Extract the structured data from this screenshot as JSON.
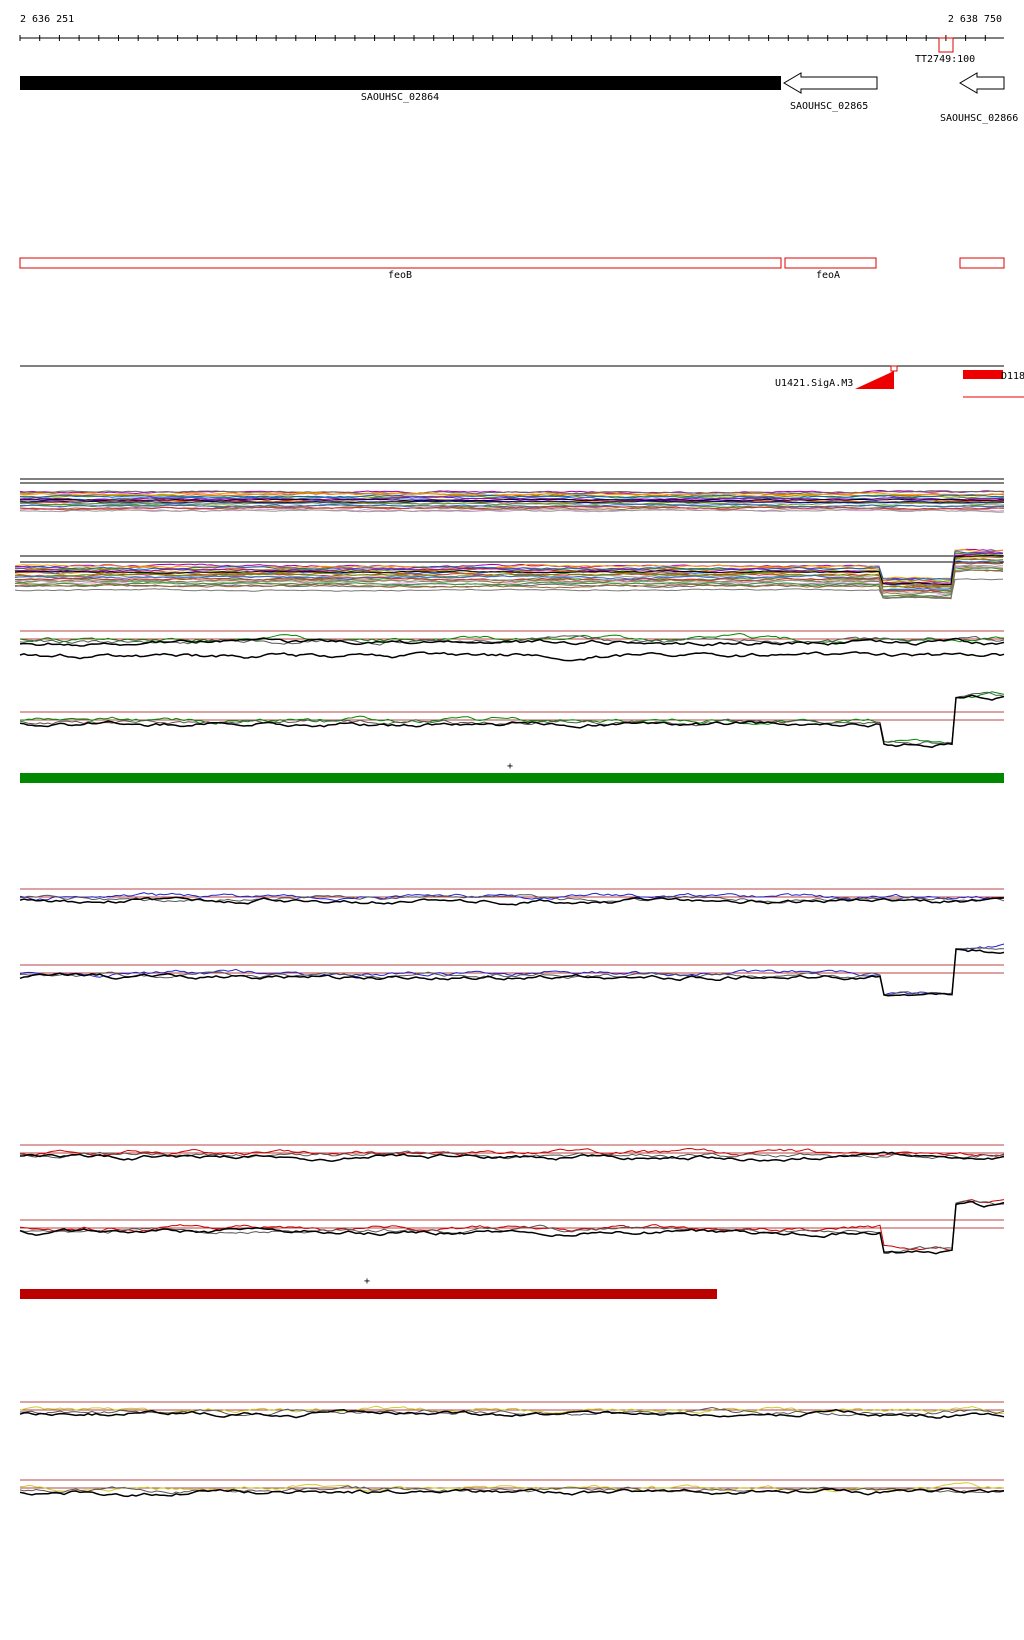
{
  "ruler": {
    "start": "2 636 251",
    "end": "2 638 750"
  },
  "terminator": "TT2749:100",
  "genes": [
    "SAOUHSC_02864",
    "SAOUHSC_02865",
    "SAOUHSC_02866"
  ],
  "annotations": [
    "feoB",
    "feoA"
  ],
  "promoters": [
    "U1421.SigA.M3",
    "D118"
  ],
  "strand_marks": [
    "+",
    "+"
  ]
}
